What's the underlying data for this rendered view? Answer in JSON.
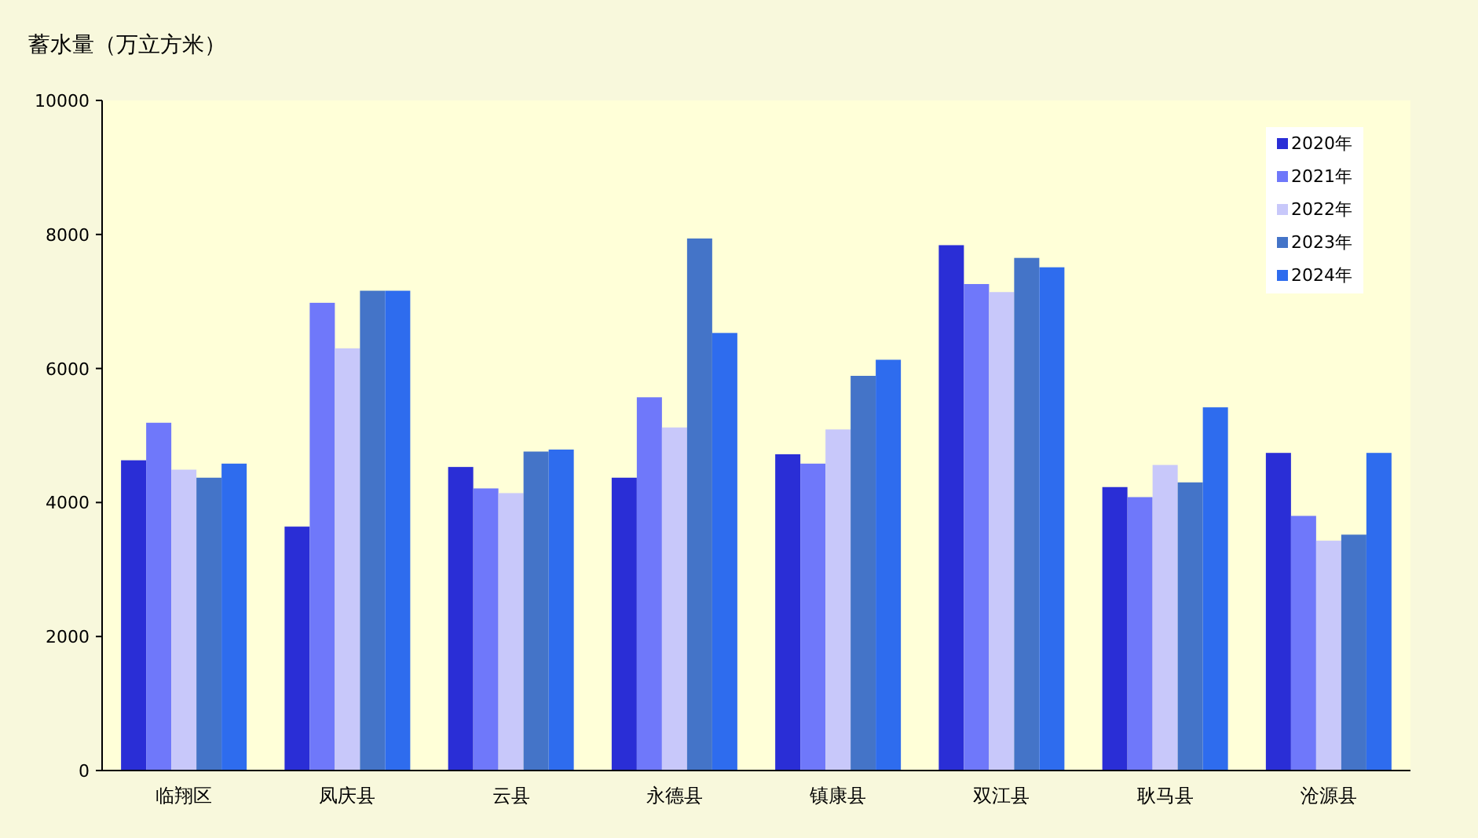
{
  "chart_data": {
    "type": "bar",
    "ylabel": "蓄水量（万立方米）",
    "categories": [
      "临翔区",
      "凤庆县",
      "云县",
      "永德县",
      "镇康县",
      "双江县",
      "耿马县",
      "沧源县"
    ],
    "series": [
      {
        "name": "2020年",
        "color": "#2a2ed6",
        "values": [
          4630,
          3640,
          4530,
          4370,
          4720,
          7840,
          4230,
          4740
        ]
      },
      {
        "name": "2021年",
        "color": "#6f78fa",
        "values": [
          5190,
          6980,
          4210,
          5570,
          4580,
          7260,
          4080,
          3800
        ]
      },
      {
        "name": "2022年",
        "color": "#c8c8fa",
        "values": [
          4490,
          6300,
          4140,
          5120,
          5090,
          7140,
          4560,
          3430
        ]
      },
      {
        "name": "2023年",
        "color": "#4474c8",
        "values": [
          4370,
          7160,
          4760,
          7940,
          5890,
          7650,
          4300,
          3520
        ]
      },
      {
        "name": "2024年",
        "color": "#2e6cee",
        "values": [
          4580,
          7160,
          4790,
          6530,
          6130,
          7510,
          5420,
          4740
        ]
      }
    ],
    "ylim": [
      0,
      10000
    ],
    "yticks": [
      0,
      2000,
      4000,
      6000,
      8000,
      10000
    ],
    "legend": "top right"
  }
}
